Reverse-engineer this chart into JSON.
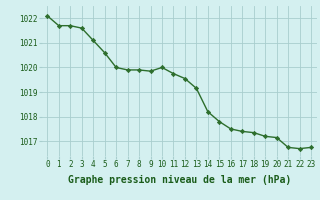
{
  "x": [
    0,
    1,
    2,
    3,
    4,
    5,
    6,
    7,
    8,
    9,
    10,
    11,
    12,
    13,
    14,
    15,
    16,
    17,
    18,
    19,
    20,
    21,
    22,
    23
  ],
  "y": [
    1022.1,
    1021.7,
    1021.7,
    1021.6,
    1021.1,
    1020.6,
    1020.0,
    1019.9,
    1019.9,
    1019.85,
    1020.0,
    1019.75,
    1019.55,
    1019.15,
    1018.2,
    1017.8,
    1017.5,
    1017.4,
    1017.35,
    1017.2,
    1017.15,
    1016.75,
    1016.7,
    1016.75
  ],
  "line_color": "#2d6e2d",
  "marker_color": "#2d6e2d",
  "bg_color": "#d4f0f0",
  "grid_color": "#a8cece",
  "axis_label_color": "#1a5c1a",
  "tick_label_color": "#1a5c1a",
  "xlabel": "Graphe pression niveau de la mer (hPa)",
  "ylim_min": 1016.4,
  "ylim_max": 1022.5,
  "yticks": [
    1017,
    1018,
    1019,
    1020,
    1021,
    1022
  ],
  "xticks": [
    0,
    1,
    2,
    3,
    4,
    5,
    6,
    7,
    8,
    9,
    10,
    11,
    12,
    13,
    14,
    15,
    16,
    17,
    18,
    19,
    20,
    21,
    22,
    23
  ],
  "marker_size": 2.2,
  "line_width": 1.0,
  "xlabel_fontsize": 7.0,
  "tick_fontsize": 5.5
}
